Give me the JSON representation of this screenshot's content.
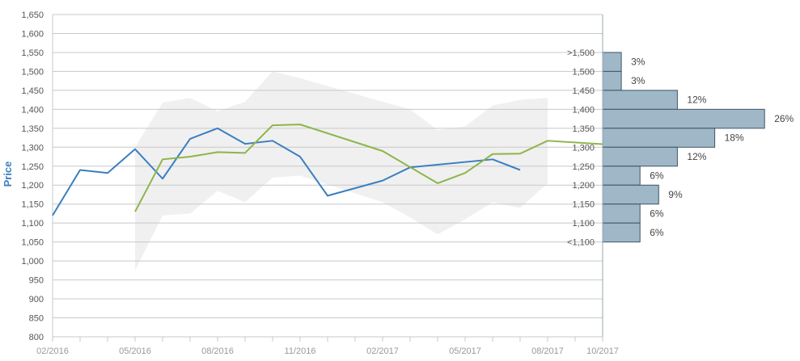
{
  "chart_data": {
    "type": "line",
    "ylabel": "Price",
    "ylim": [
      800,
      1650
    ],
    "yticks": [
      "800",
      "850",
      "900",
      "950",
      "1,000",
      "1,050",
      "1,100",
      "1,150",
      "1,200",
      "1,250",
      "1,300",
      "1,350",
      "1,400",
      "1,450",
      "1,500",
      "1,550",
      "1,600",
      "1,650"
    ],
    "xlim": [
      "2016-02",
      "2017-10"
    ],
    "xticks": [
      {
        "t": "2016-02",
        "label": "02/2016"
      },
      {
        "t": "2016-05",
        "label": "05/2016"
      },
      {
        "t": "2016-08",
        "label": "08/2016"
      },
      {
        "t": "2016-11",
        "label": "11/2016"
      },
      {
        "t": "2017-02",
        "label": "02/2017"
      },
      {
        "t": "2017-05",
        "label": "05/2017"
      },
      {
        "t": "2017-08",
        "label": "08/2017"
      },
      {
        "t": "2017-10",
        "label": "10/2017"
      }
    ],
    "grid": true,
    "series": [
      {
        "color": "#3a7fc1",
        "points": [
          [
            "2016-02",
            1120
          ],
          [
            "2016-03",
            1240
          ],
          [
            "2016-04",
            1232
          ],
          [
            "2016-05",
            1295
          ],
          [
            "2016-06",
            1217
          ],
          [
            "2016-07",
            1322
          ],
          [
            "2016-08",
            1350
          ],
          [
            "2016-09",
            1309
          ],
          [
            "2016-10",
            1317
          ],
          [
            "2016-11",
            1275
          ],
          [
            "2016-12",
            1172
          ],
          [
            "2017-02",
            1212
          ],
          [
            "2017-03",
            1247
          ],
          [
            "2017-06",
            1268
          ],
          [
            "2017-07",
            1240
          ]
        ]
      },
      {
        "color": "#8db54a",
        "points": [
          [
            "2016-05",
            1130
          ],
          [
            "2016-06",
            1268
          ],
          [
            "2016-07",
            1275
          ],
          [
            "2016-08",
            1287
          ],
          [
            "2016-09",
            1285
          ],
          [
            "2016-10",
            1358
          ],
          [
            "2016-11",
            1360
          ],
          [
            "2017-02",
            1290
          ],
          [
            "2017-04",
            1205
          ],
          [
            "2017-05",
            1232
          ],
          [
            "2017-06",
            1282
          ],
          [
            "2017-07",
            1283
          ],
          [
            "2017-08",
            1317
          ],
          [
            "2017-10",
            1308
          ]
        ]
      }
    ],
    "band": {
      "color": "#f0f0f0",
      "upper": [
        [
          "2016-05",
          1300
        ],
        [
          "2016-06",
          1418
        ],
        [
          "2016-07",
          1430
        ],
        [
          "2016-08",
          1395
        ],
        [
          "2016-09",
          1420
        ],
        [
          "2016-10",
          1500
        ],
        [
          "2016-11",
          1482
        ],
        [
          "2017-02",
          1420
        ],
        [
          "2017-03",
          1400
        ],
        [
          "2017-04",
          1345
        ],
        [
          "2017-05",
          1355
        ],
        [
          "2017-06",
          1410
        ],
        [
          "2017-07",
          1425
        ],
        [
          "2017-08",
          1430
        ]
      ],
      "lower": [
        [
          "2016-05",
          975
        ],
        [
          "2016-06",
          1120
        ],
        [
          "2016-07",
          1125
        ],
        [
          "2016-08",
          1185
        ],
        [
          "2016-09",
          1155
        ],
        [
          "2016-10",
          1220
        ],
        [
          "2016-11",
          1225
        ],
        [
          "2017-02",
          1155
        ],
        [
          "2017-03",
          1115
        ],
        [
          "2017-04",
          1070
        ],
        [
          "2017-05",
          1110
        ],
        [
          "2017-06",
          1155
        ],
        [
          "2017-07",
          1140
        ],
        [
          "2017-08",
          1205
        ]
      ]
    },
    "distribution": {
      "color": "#9fb7c6",
      "stroke": "#3d5566",
      "buckets": [
        {
          "label": ">1,500",
          "from": 1500,
          "to": 1550,
          "pct": 3,
          "pct_label": "3%"
        },
        {
          "label": "1,500",
          "from": 1450,
          "to": 1500,
          "pct": 3,
          "pct_label": "3%"
        },
        {
          "label": "1,450",
          "from": 1400,
          "to": 1450,
          "pct": 12,
          "pct_label": "12%"
        },
        {
          "label": "1,400",
          "from": 1350,
          "to": 1400,
          "pct": 26,
          "pct_label": "26%"
        },
        {
          "label": "1,350",
          "from": 1300,
          "to": 1350,
          "pct": 18,
          "pct_label": "18%"
        },
        {
          "label": "1,300",
          "from": 1250,
          "to": 1300,
          "pct": 12,
          "pct_label": "12%"
        },
        {
          "label": "1,250",
          "from": 1200,
          "to": 1250,
          "pct": 6,
          "pct_label": "6%"
        },
        {
          "label": "1,200",
          "from": 1150,
          "to": 1200,
          "pct": 9,
          "pct_label": "9%"
        },
        {
          "label": "1,150",
          "from": 1100,
          "to": 1150,
          "pct": 6,
          "pct_label": "6%"
        },
        {
          "label": "1,100",
          "from": 1050,
          "to": 1100,
          "pct": 6,
          "pct_label": "6%"
        },
        {
          "label": "<1,100",
          "from": 1050,
          "to": 1050,
          "pct": 0,
          "pct_label": ""
        }
      ]
    },
    "colors": {
      "grid": "#c8c8c8",
      "axis": "#9aa7b0",
      "ylabel": "#3a7fc1"
    }
  }
}
